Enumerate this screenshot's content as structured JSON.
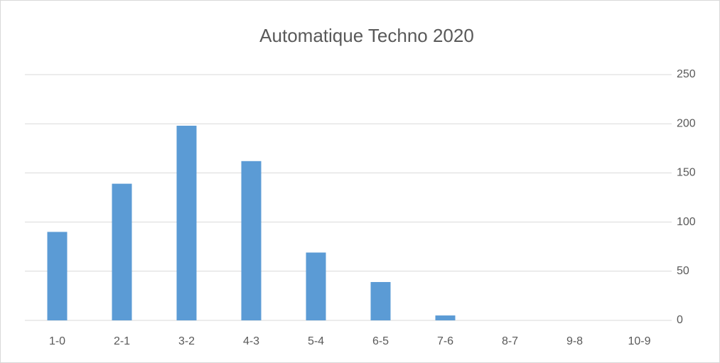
{
  "chart_data": {
    "type": "bar",
    "title": "Automatique Techno 2020",
    "categories": [
      "1-0",
      "2-1",
      "3-2",
      "4-3",
      "5-4",
      "6-5",
      "7-6",
      "8-7",
      "9-8",
      "10-9"
    ],
    "values": [
      90,
      139,
      198,
      162,
      69,
      39,
      5,
      0,
      0,
      0
    ],
    "color": "#5b9bd5",
    "ylim": [
      0,
      250
    ],
    "yticks": [
      0,
      50,
      100,
      150,
      200,
      250
    ],
    "grid": true,
    "y_axis_side": "right"
  }
}
